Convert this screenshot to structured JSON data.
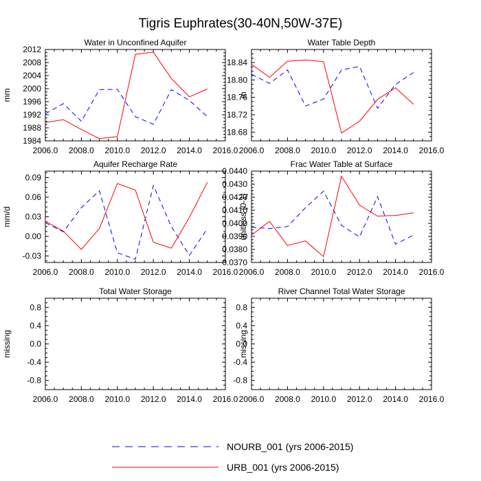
{
  "figure_title": "Tigris Euphrates(30-40N,50W-37E)",
  "legend": [
    {
      "name": "NOURB_001 (yrs 2006-2015)",
      "color": "#0000ff",
      "style": "dashed"
    },
    {
      "name": "URB_001 (yrs 2006-2015)",
      "color": "#ff0000",
      "style": "solid"
    }
  ],
  "chart_data": [
    {
      "type": "line",
      "title": "Water in Unconfined Aquifer",
      "ylabel": "mm",
      "xlim": [
        2006,
        2016
      ],
      "ylim": [
        1984,
        2012
      ],
      "xticks": [
        2006,
        2008,
        2010,
        2012,
        2014,
        2016
      ],
      "xtick_labels": [
        "2006.0",
        "2008.0",
        "2010.0",
        "2012.0",
        "2014.0",
        "2016.0"
      ],
      "yticks": [
        1984,
        1988,
        1992,
        1996,
        2000,
        2004,
        2008,
        2012
      ],
      "ytick_labels": [
        "1984",
        "1988",
        "1992",
        "1996",
        "2000",
        "2004",
        "2008",
        "2012"
      ],
      "x": [
        2006,
        2007,
        2008,
        2009,
        2010,
        2011,
        2012,
        2013,
        2014,
        2015
      ],
      "series": [
        {
          "name": "NOURB_001 (yrs 2006-2015)",
          "color": "#0000ff",
          "dashed": true,
          "values": [
            1992.3,
            1995.4,
            1990.0,
            1999.7,
            1999.8,
            1991.4,
            1989.1,
            1999.7,
            1996.4,
            1991.4
          ]
        },
        {
          "name": "URB_001 (yrs 2006-2015)",
          "color": "#ff0000",
          "dashed": false,
          "values": [
            1989.6,
            1990.5,
            1987.5,
            1984.7,
            1985.3,
            2010.5,
            2011.2,
            2003.1,
            1997.5,
            1999.9
          ]
        }
      ]
    },
    {
      "type": "line",
      "title": "Water Table Depth",
      "ylabel": "m",
      "xlim": [
        2006,
        2016
      ],
      "ylim": [
        18.66,
        18.87
      ],
      "xticks": [
        2006,
        2008,
        2010,
        2012,
        2014,
        2016
      ],
      "xtick_labels": [
        "2006.0",
        "2008.0",
        "2010.0",
        "2012.0",
        "2014.0",
        "2016.0"
      ],
      "yticks": [
        18.68,
        18.72,
        18.76,
        18.8,
        18.84
      ],
      "ytick_labels": [
        "18.68",
        "18.72",
        "18.76",
        "18.80",
        "18.84"
      ],
      "x": [
        2006,
        2007,
        2008,
        2009,
        2010,
        2011,
        2012,
        2013,
        2014,
        2015
      ],
      "series": [
        {
          "name": "NOURB_001 (yrs 2006-2015)",
          "color": "#0000ff",
          "dashed": true,
          "values": [
            18.813,
            18.792,
            18.823,
            18.74,
            18.756,
            18.823,
            18.831,
            18.735,
            18.79,
            18.817
          ]
        },
        {
          "name": "URB_001 (yrs 2006-2015)",
          "color": "#ff0000",
          "dashed": false,
          "values": [
            18.836,
            18.806,
            18.843,
            18.846,
            18.842,
            18.678,
            18.705,
            18.755,
            18.782,
            18.744
          ]
        }
      ]
    },
    {
      "type": "line",
      "title": "Aquifer Recharge Rate",
      "ylabel": "mm/d",
      "xlim": [
        2006,
        2016
      ],
      "ylim": [
        -0.04,
        0.1
      ],
      "xticks": [
        2006,
        2008,
        2010,
        2012,
        2014,
        2016
      ],
      "xtick_labels": [
        "2006.0",
        "2008.0",
        "2010.0",
        "2012.0",
        "2014.0",
        "2016.0"
      ],
      "yticks": [
        -0.03,
        0.0,
        0.03,
        0.06,
        0.09
      ],
      "ytick_labels": [
        "-0.03",
        "0.00",
        "0.03",
        "0.06",
        "0.09"
      ],
      "x": [
        2006,
        2007,
        2008,
        2009,
        2010,
        2011,
        2012,
        2013,
        2014,
        2015
      ],
      "series": [
        {
          "name": "NOURB_001 (yrs 2006-2015)",
          "color": "#0000ff",
          "dashed": true,
          "values": [
            0.021,
            0.007,
            0.044,
            0.07,
            -0.025,
            -0.035,
            0.078,
            0.015,
            -0.029,
            0.012
          ]
        },
        {
          "name": "URB_001 (yrs 2006-2015)",
          "color": "#ff0000",
          "dashed": false,
          "values": [
            0.023,
            0.008,
            -0.02,
            0.012,
            0.081,
            0.071,
            -0.009,
            -0.018,
            0.029,
            0.083
          ]
        }
      ]
    },
    {
      "type": "line",
      "title": "Frac Water Table at Surface",
      "ylabel": "unitless [0-1]",
      "xlim": [
        2006,
        2016
      ],
      "ylim": [
        0.037,
        0.044
      ],
      "xticks": [
        2006,
        2008,
        2010,
        2012,
        2014,
        2016
      ],
      "xtick_labels": [
        "2006.0",
        "2008.0",
        "2010.0",
        "2012.0",
        "2014.0",
        "2016.0"
      ],
      "yticks": [
        0.037,
        0.038,
        0.039,
        0.04,
        0.041,
        0.042,
        0.043,
        0.044
      ],
      "ytick_labels": [
        "0.0370",
        "0.0380",
        "0.0390",
        "0.0400",
        "0.0410",
        "0.0420",
        "0.0430",
        "0.0440"
      ],
      "x": [
        2006,
        2007,
        2008,
        2009,
        2010,
        2011,
        2012,
        2013,
        2014,
        2015
      ],
      "series": [
        {
          "name": "NOURB_001 (yrs 2006-2015)",
          "color": "#0000ff",
          "dashed": true,
          "values": [
            0.0397,
            0.0396,
            0.03975,
            0.0412,
            0.04245,
            0.03985,
            0.03895,
            0.04205,
            0.0384,
            0.0391
          ]
        },
        {
          "name": "URB_001 (yrs 2006-2015)",
          "color": "#ff0000",
          "dashed": false,
          "values": [
            0.0391,
            0.04015,
            0.0383,
            0.03865,
            0.03745,
            0.0436,
            0.0414,
            0.04055,
            0.0406,
            0.0408
          ]
        }
      ]
    },
    {
      "type": "line",
      "title": "Total Water Storage",
      "ylabel": "missing",
      "xlim": [
        2006,
        2016
      ],
      "ylim": [
        -1,
        1
      ],
      "xticks": [
        2006,
        2008,
        2010,
        2012,
        2014,
        2016
      ],
      "xtick_labels": [
        "2006.0",
        "2008.0",
        "2010.0",
        "2012.0",
        "2014.0",
        "2016.0"
      ],
      "yticks": [
        -0.8,
        -0.4,
        0.0,
        0.4,
        0.8
      ],
      "ytick_labels": [
        "-0.8",
        "-0.4",
        "0.0",
        "0.4",
        "0.8"
      ],
      "x": [],
      "series": []
    },
    {
      "type": "line",
      "title": "River Channel Total Water Storage",
      "ylabel": "missing",
      "xlim": [
        2006,
        2016
      ],
      "ylim": [
        -1,
        1
      ],
      "xticks": [
        2006,
        2008,
        2010,
        2012,
        2014,
        2016
      ],
      "xtick_labels": [
        "2006.0",
        "2008.0",
        "2010.0",
        "2012.0",
        "2014.0",
        "2016.0"
      ],
      "yticks": [
        -0.8,
        -0.4,
        0.0,
        0.4,
        0.8
      ],
      "ytick_labels": [
        "-0.8",
        "-0.4",
        "0.0",
        "0.4",
        "0.8"
      ],
      "x": [],
      "series": []
    }
  ]
}
